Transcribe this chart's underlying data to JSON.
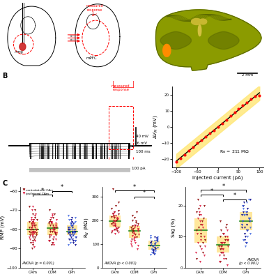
{
  "trace_rmp": -76,
  "RN_value": 211,
  "IV_x": [
    -100,
    -80,
    -60,
    -40,
    -20,
    0,
    20,
    40,
    60,
    80,
    100
  ],
  "IV_y": [
    -21.1,
    -16.88,
    -12.66,
    -8.44,
    -4.22,
    0,
    4.22,
    8.44,
    12.66,
    16.88,
    21.1
  ],
  "IV_scatter_x": [
    -100,
    -90,
    -80,
    -70,
    -60,
    -50,
    -40,
    -30,
    -20,
    -10,
    0,
    10,
    20,
    30,
    40,
    50,
    60,
    70,
    80,
    90,
    100
  ],
  "IV_scatter_y": [
    -21.5,
    -19.2,
    -17.1,
    -14.8,
    -12.3,
    -10.1,
    -8.0,
    -5.9,
    -3.8,
    -2.1,
    0.2,
    2.3,
    4.5,
    6.7,
    8.9,
    11.2,
    13.4,
    15.3,
    17.1,
    18.8,
    19.5
  ],
  "rmp_CAm_contra": [
    -68,
    -70,
    -72,
    -74,
    -75,
    -75,
    -76,
    -76,
    -77,
    -77,
    -78,
    -78,
    -78,
    -79,
    -79,
    -80,
    -80,
    -80,
    -80,
    -81,
    -81,
    -82,
    -82,
    -82,
    -83,
    -83,
    -84,
    -84,
    -85,
    -86,
    -87,
    -88,
    -90
  ],
  "rmp_CAm_ipsi": [
    -68,
    -70,
    -72,
    -73,
    -74,
    -75,
    -75,
    -76,
    -77,
    -77,
    -78,
    -78,
    -79,
    -79,
    -80,
    -80,
    -81,
    -81,
    -82,
    -82,
    -83,
    -83,
    -84,
    -85,
    -86,
    -87,
    -89
  ],
  "rmp_COM_contra": [
    -70,
    -72,
    -74,
    -75,
    -76,
    -76,
    -77,
    -77,
    -78,
    -78,
    -79,
    -79,
    -80,
    -80,
    -81,
    -81,
    -82,
    -82,
    -83,
    -83,
    -84,
    -85,
    -86,
    -87,
    -88
  ],
  "rmp_COM_ipsi": [
    -72,
    -73,
    -74,
    -75,
    -76,
    -77,
    -77,
    -78,
    -78,
    -79,
    -79,
    -80,
    -80,
    -81,
    -82,
    -83,
    -84,
    -85,
    -86,
    -87,
    -88
  ],
  "rmp_CPn_contra": [
    -74,
    -75,
    -76,
    -77,
    -77,
    -78,
    -78,
    -79,
    -79,
    -80,
    -80,
    -80,
    -81,
    -81,
    -81,
    -82,
    -82,
    -82,
    -83,
    -83,
    -83,
    -84,
    -84,
    -85,
    -85,
    -86,
    -86,
    -87,
    -88
  ],
  "rmp_CPn_ipsi": [
    -73,
    -74,
    -75,
    -76,
    -77,
    -77,
    -78,
    -78,
    -79,
    -79,
    -80,
    -80,
    -80,
    -81,
    -81,
    -82,
    -82,
    -83,
    -83,
    -84,
    -85,
    -86,
    -87,
    -88
  ],
  "rn_CAm_contra": [
    150,
    155,
    160,
    165,
    170,
    175,
    180,
    185,
    190,
    195,
    200,
    205,
    210,
    215,
    220,
    225,
    230,
    235,
    240,
    250,
    260,
    275,
    330
  ],
  "rn_CAm_ipsi": [
    145,
    150,
    155,
    160,
    165,
    170,
    175,
    180,
    185,
    190,
    195,
    200,
    205,
    210,
    215,
    220,
    225,
    235
  ],
  "rn_COM_contra": [
    120,
    130,
    140,
    150,
    155,
    160,
    165,
    170,
    175,
    180,
    185,
    190,
    195,
    200,
    210,
    220,
    235
  ],
  "rn_COM_ipsi": [
    80,
    90,
    95,
    100,
    105,
    110,
    115,
    120,
    125,
    130,
    135,
    140,
    145,
    150,
    155,
    160,
    165,
    170,
    175,
    180
  ],
  "rn_CPn_contra": [
    60,
    65,
    70,
    75,
    80,
    85,
    90,
    95,
    100,
    105,
    110,
    115,
    120,
    125,
    130
  ],
  "rn_CPn_ipsi": [
    55,
    60,
    65,
    70,
    75,
    80,
    85,
    90,
    95,
    100,
    105,
    110,
    115,
    120,
    125,
    130,
    135
  ],
  "sag_CAm_contra": [
    3,
    5,
    7,
    8,
    9,
    10,
    11,
    12,
    13,
    14,
    15,
    16,
    17,
    18,
    19,
    20,
    22
  ],
  "sag_CAm_ipsi": [
    2,
    4,
    5,
    6,
    7,
    8,
    9,
    10,
    11,
    12,
    13,
    14,
    15,
    16,
    17,
    18,
    20
  ],
  "sag_COM_contra": [
    2,
    3,
    4,
    5,
    6,
    6,
    7,
    7,
    8,
    8,
    9,
    9,
    10,
    10,
    11,
    12,
    13,
    14,
    15
  ],
  "sag_COM_ipsi": [
    1,
    2,
    3,
    4,
    5,
    5,
    6,
    6,
    7,
    7,
    8,
    8,
    9,
    9,
    10,
    11,
    12
  ],
  "sag_CPn_contra": [
    8,
    9,
    10,
    11,
    12,
    12,
    13,
    13,
    14,
    14,
    15,
    15,
    16,
    16,
    17,
    17,
    18,
    18,
    19,
    20,
    21,
    22
  ],
  "sag_CPn_ipsi": [
    7,
    8,
    9,
    10,
    11,
    12,
    13,
    14,
    15,
    15,
    16,
    16,
    17,
    17,
    18,
    19,
    20,
    21,
    22
  ],
  "color_contra": "#8B0000",
  "color_ipsi": "#DC143C",
  "color_cpn_contra": "#00008B",
  "color_cpn_ipsi": "#4169E1",
  "color_box": "#FFE07C",
  "legend_contra": "contralateral CAm",
  "legend_ipsi": "ipsilateral CAm",
  "categories": [
    "CAm",
    "COM",
    "CPn"
  ],
  "anova_rmp": "ANOVA (p = 0.001)",
  "anova_rn": "ANOVA (p < 0.001)",
  "anova_sag": "ANOVA (p < 0.001)"
}
